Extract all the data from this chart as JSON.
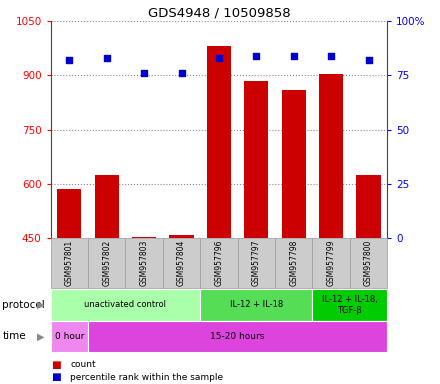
{
  "title": "GDS4948 / 10509858",
  "samples": [
    "GSM957801",
    "GSM957802",
    "GSM957803",
    "GSM957804",
    "GSM957796",
    "GSM957797",
    "GSM957798",
    "GSM957799",
    "GSM957800"
  ],
  "counts": [
    585,
    625,
    452,
    458,
    980,
    885,
    860,
    905,
    625
  ],
  "percentile_ranks": [
    82,
    83,
    76,
    76,
    83,
    84,
    84,
    84,
    82
  ],
  "ylim_left": [
    450,
    1050
  ],
  "ylim_right": [
    0,
    100
  ],
  "yticks_left": [
    450,
    600,
    750,
    900,
    1050
  ],
  "yticks_right": [
    0,
    25,
    50,
    75,
    100
  ],
  "ytick_right_labels": [
    "0",
    "25",
    "50",
    "75",
    "100%"
  ],
  "bar_color": "#cc0000",
  "scatter_color": "#0000cc",
  "protocol_groups": [
    {
      "label": "unactivated control",
      "start": 0,
      "end": 4,
      "color": "#aaffaa"
    },
    {
      "label": "IL-12 + IL-18",
      "start": 4,
      "end": 7,
      "color": "#55dd55"
    },
    {
      "label": "IL-12 + IL-18,\nTGF-β",
      "start": 7,
      "end": 9,
      "color": "#00cc00"
    }
  ],
  "time_groups": [
    {
      "label": "0 hour",
      "start": 0,
      "end": 1,
      "color": "#ee88ee"
    },
    {
      "label": "15-20 hours",
      "start": 1,
      "end": 9,
      "color": "#dd44dd"
    }
  ],
  "protocol_label": "protocol",
  "time_label": "time",
  "legend_count": "count",
  "legend_pct": "percentile rank within the sample",
  "grid_color": "#888888",
  "bg_color": "#ffffff",
  "sample_bg_color": "#cccccc",
  "sample_border_color": "#999999"
}
